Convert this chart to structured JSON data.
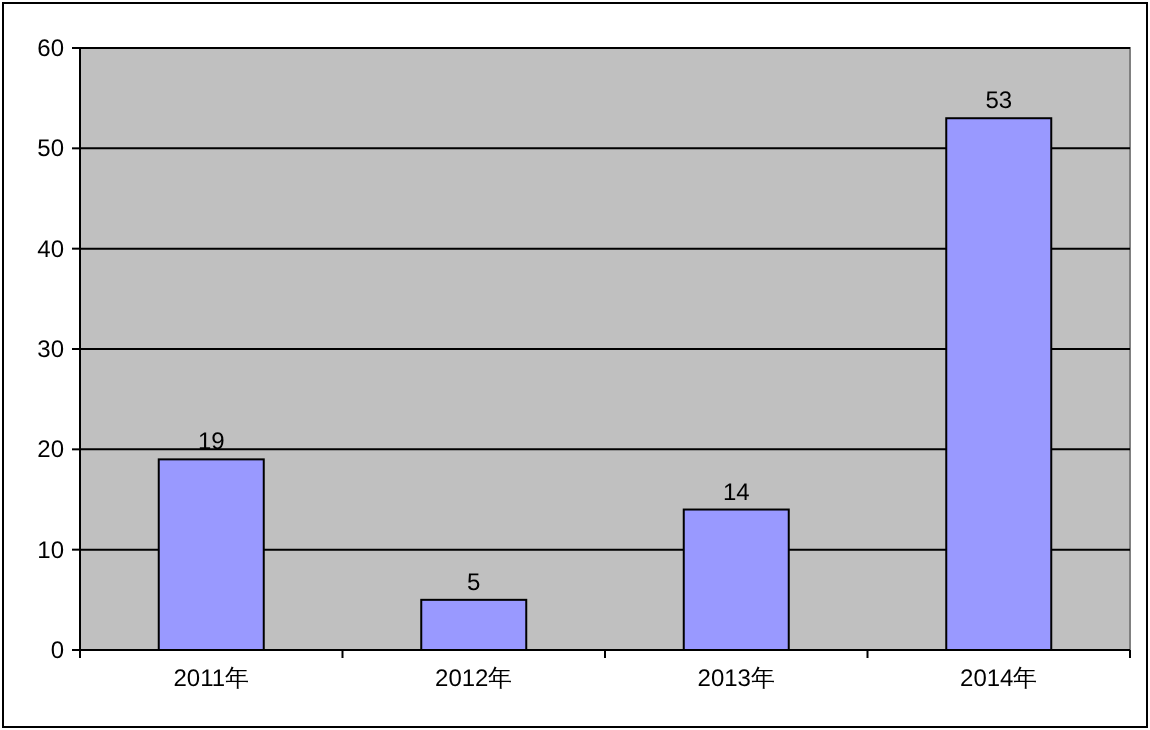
{
  "chart_data": {
    "type": "bar",
    "categories": [
      "2011年",
      "2012年",
      "2013年",
      "2014年"
    ],
    "values": [
      19,
      5,
      14,
      53
    ],
    "color": "#9999ff",
    "ylim": [
      0,
      60
    ],
    "yticks": [
      0,
      10,
      20,
      30,
      40,
      50,
      60
    ],
    "grid": "y",
    "data_labels": true
  }
}
